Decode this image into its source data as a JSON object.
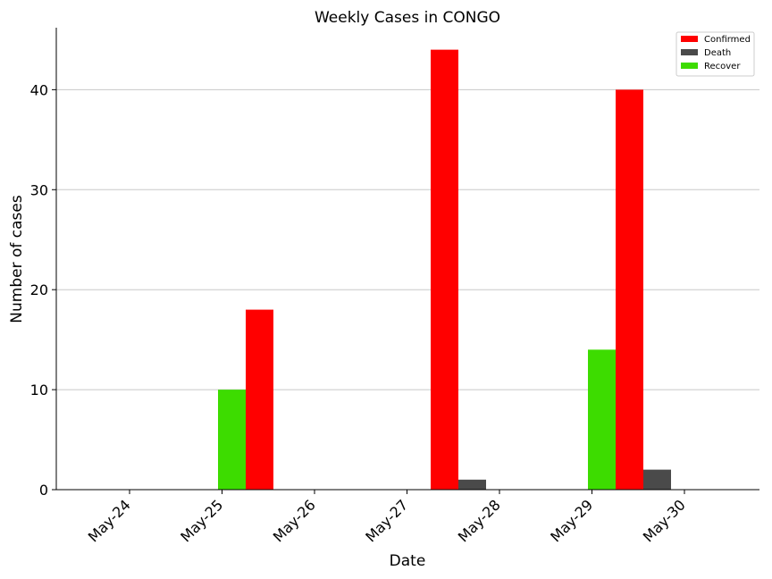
{
  "chart_data": {
    "type": "bar",
    "title": "Weekly Cases in CONGO",
    "xlabel": "Date",
    "ylabel": "Number of cases",
    "categories": [
      "May-24",
      "May-25",
      "May-26",
      "May-27",
      "May-28",
      "May-29",
      "May-30"
    ],
    "series": [
      {
        "name": "Confirmed",
        "color": "#ff0000",
        "values": [
          0,
          18,
          0,
          44,
          0,
          40,
          0
        ]
      },
      {
        "name": "Death",
        "color": "#4a4a4a",
        "values": [
          0,
          0,
          0,
          1,
          0,
          2,
          0
        ]
      },
      {
        "name": "Recover",
        "color": "#3ddc00",
        "values": [
          0,
          10,
          0,
          0,
          0,
          14,
          0
        ]
      }
    ],
    "ylim": [
      0,
      46.2
    ],
    "yticks": [
      0,
      10,
      20,
      30,
      40
    ],
    "grid": "y",
    "legend": "top-right"
  }
}
